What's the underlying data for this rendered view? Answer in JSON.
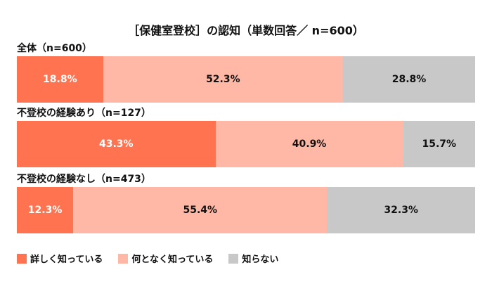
{
  "chart_data": {
    "type": "bar",
    "stacked": true,
    "orientation": "horizontal",
    "title": "［保健室登校］の認知（単数回答／ n=600）",
    "legend_position": "bottom-left",
    "series": [
      {
        "name": "詳しく知っている",
        "color": "#FF7350",
        "label_color": "#FFFFFF"
      },
      {
        "name": "何となく知っている",
        "color": "#FFB8A5",
        "label_color": "#111111"
      },
      {
        "name": "知らない",
        "color": "#C8C8C8",
        "label_color": "#111111"
      }
    ],
    "groups": [
      {
        "label": "全体（n=600）",
        "values": [
          18.8,
          52.3,
          28.8
        ],
        "labels": [
          "18.8%",
          "52.3%",
          "28.8%"
        ]
      },
      {
        "label": "不登校の経験あり（n=127）",
        "values": [
          43.3,
          40.9,
          15.7
        ],
        "labels": [
          "43.3%",
          "40.9%",
          "15.7%"
        ]
      },
      {
        "label": "不登校の経験なし（n=473）",
        "values": [
          12.3,
          55.4,
          32.3
        ],
        "labels": [
          "12.3%",
          "55.4%",
          "32.3%"
        ]
      }
    ]
  }
}
